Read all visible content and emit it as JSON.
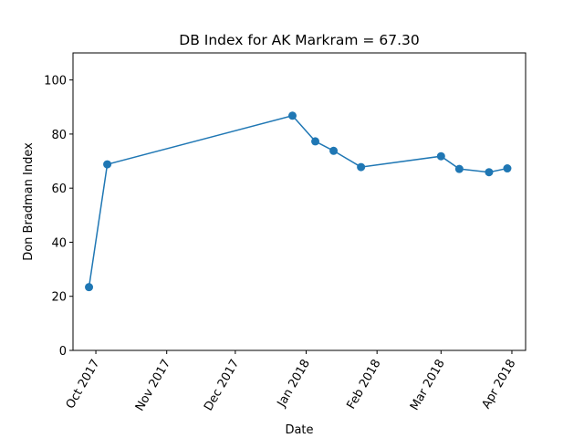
{
  "chart_data": {
    "type": "line",
    "title": "DB Index for AK Markram = 67.30",
    "xlabel": "Date",
    "ylabel": "Don Bradman Index",
    "x_type": "date",
    "xlim": [
      "2017-09-21",
      "2018-04-07"
    ],
    "ylim": [
      0,
      110
    ],
    "x_ticks": [
      {
        "date": "2017-10-01",
        "label": "Oct 2017"
      },
      {
        "date": "2017-11-01",
        "label": "Nov 2017"
      },
      {
        "date": "2017-12-01",
        "label": "Dec 2017"
      },
      {
        "date": "2018-01-01",
        "label": "Jan 2018"
      },
      {
        "date": "2018-02-01",
        "label": "Feb 2018"
      },
      {
        "date": "2018-03-01",
        "label": "Mar 2018"
      },
      {
        "date": "2018-04-01",
        "label": "Apr 2018"
      }
    ],
    "y_ticks": [
      0,
      20,
      40,
      60,
      80,
      100
    ],
    "grid": false,
    "series": [
      {
        "color": "#1f77b4",
        "marker": "circle",
        "x": [
          "2017-09-28",
          "2017-10-06",
          "2017-12-26",
          "2018-01-05",
          "2018-01-13",
          "2018-01-25",
          "2018-03-01",
          "2018-03-09",
          "2018-03-22",
          "2018-03-30"
        ],
        "y": [
          23.4,
          68.8,
          86.8,
          77.3,
          73.8,
          67.8,
          71.8,
          67.1,
          65.9,
          67.3
        ]
      }
    ]
  }
}
